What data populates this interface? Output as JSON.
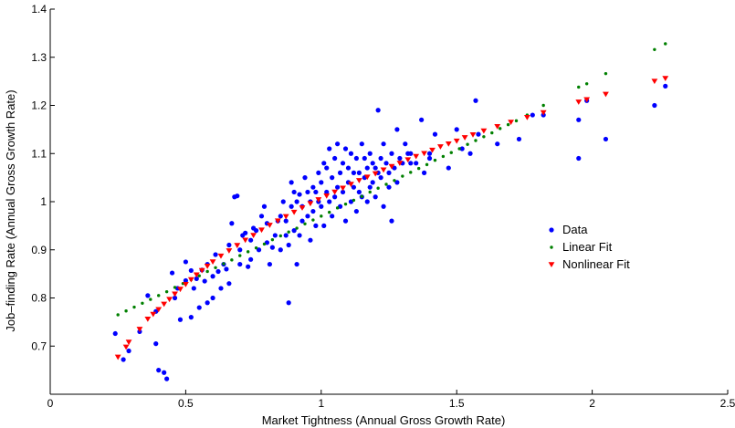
{
  "chart_data": {
    "type": "scatter",
    "title": "",
    "xlabel": "Market Tightness (Annual Gross Growth Rate)",
    "ylabel": "Job–finding Rate (Annual Gross Growth Rate)",
    "xlim": [
      0,
      2.5
    ],
    "ylim": [
      0.6,
      1.4
    ],
    "xticks": [
      0,
      0.5,
      1,
      1.5,
      2,
      2.5
    ],
    "xtick_labels": [
      "0",
      "0.5",
      "1",
      "1.5",
      "2",
      "2.5"
    ],
    "yticks": [
      0.7,
      0.8,
      0.9,
      1.0,
      1.1,
      1.2,
      1.3,
      1.4
    ],
    "ytick_labels": [
      "0.7",
      "0.8",
      "0.9",
      "1",
      "1.1",
      "1.2",
      "1.3",
      "1.4"
    ],
    "grid": false,
    "legend_position": "center-right",
    "series": [
      {
        "name": "Data",
        "color": "#0000ff",
        "marker": "circle",
        "points": [
          [
            0.24,
            0.726
          ],
          [
            0.27,
            0.672
          ],
          [
            0.29,
            0.69
          ],
          [
            0.33,
            0.73
          ],
          [
            0.36,
            0.805
          ],
          [
            0.39,
            0.705
          ],
          [
            0.39,
            0.772
          ],
          [
            0.4,
            0.65
          ],
          [
            0.42,
            0.645
          ],
          [
            0.43,
            0.632
          ],
          [
            0.45,
            0.852
          ],
          [
            0.46,
            0.8
          ],
          [
            0.47,
            0.82
          ],
          [
            0.48,
            0.755
          ],
          [
            0.5,
            0.875
          ],
          [
            0.5,
            0.836
          ],
          [
            0.52,
            0.857
          ],
          [
            0.52,
            0.76
          ],
          [
            0.53,
            0.82
          ],
          [
            0.54,
            0.84
          ],
          [
            0.55,
            0.78
          ],
          [
            0.56,
            0.858
          ],
          [
            0.57,
            0.835
          ],
          [
            0.58,
            0.87
          ],
          [
            0.58,
            0.79
          ],
          [
            0.6,
            0.845
          ],
          [
            0.6,
            0.8
          ],
          [
            0.61,
            0.89
          ],
          [
            0.62,
            0.855
          ],
          [
            0.63,
            0.82
          ],
          [
            0.64,
            0.87
          ],
          [
            0.65,
            0.86
          ],
          [
            0.66,
            0.91
          ],
          [
            0.66,
            0.83
          ],
          [
            0.67,
            0.955
          ],
          [
            0.68,
            1.01
          ],
          [
            0.69,
            1.012
          ],
          [
            0.7,
            0.87
          ],
          [
            0.7,
            0.9
          ],
          [
            0.71,
            0.93
          ],
          [
            0.72,
            0.935
          ],
          [
            0.73,
            0.865
          ],
          [
            0.74,
            0.88
          ],
          [
            0.74,
            0.92
          ],
          [
            0.75,
            0.945
          ],
          [
            0.76,
            0.94
          ],
          [
            0.77,
            0.9
          ],
          [
            0.78,
            0.97
          ],
          [
            0.79,
            0.99
          ],
          [
            0.8,
            0.915
          ],
          [
            0.8,
            0.955
          ],
          [
            0.81,
            0.87
          ],
          [
            0.82,
            0.905
          ],
          [
            0.83,
            0.93
          ],
          [
            0.84,
            0.96
          ],
          [
            0.85,
            0.9
          ],
          [
            0.85,
            0.97
          ],
          [
            0.86,
            1.0
          ],
          [
            0.87,
            0.93
          ],
          [
            0.87,
            0.96
          ],
          [
            0.88,
            0.91
          ],
          [
            0.88,
            0.79
          ],
          [
            0.89,
            1.04
          ],
          [
            0.89,
            0.99
          ],
          [
            0.9,
            1.02
          ],
          [
            0.9,
            0.94
          ],
          [
            0.91,
            1.0
          ],
          [
            0.91,
            0.87
          ],
          [
            0.92,
            0.93
          ],
          [
            0.92,
            1.015
          ],
          [
            0.93,
            0.96
          ],
          [
            0.93,
            0.99
          ],
          [
            0.94,
            1.05
          ],
          [
            0.95,
            0.97
          ],
          [
            0.95,
            1.02
          ],
          [
            0.96,
            1.0
          ],
          [
            0.96,
            0.92
          ],
          [
            0.97,
            1.03
          ],
          [
            0.97,
            0.98
          ],
          [
            0.98,
            1.02
          ],
          [
            0.98,
            0.95
          ],
          [
            0.99,
            1.06
          ],
          [
            0.99,
            1.0
          ],
          [
            1.0,
            0.99
          ],
          [
            1.0,
            1.04
          ],
          [
            1.01,
            1.08
          ],
          [
            1.01,
            0.95
          ],
          [
            1.02,
            1.02
          ],
          [
            1.02,
            1.07
          ],
          [
            1.03,
            1.0
          ],
          [
            1.03,
            1.11
          ],
          [
            1.04,
            1.05
          ],
          [
            1.04,
            0.97
          ],
          [
            1.05,
            1.01
          ],
          [
            1.05,
            1.09
          ],
          [
            1.06,
            1.03
          ],
          [
            1.06,
            1.12
          ],
          [
            1.07,
            0.99
          ],
          [
            1.07,
            1.06
          ],
          [
            1.08,
            1.02
          ],
          [
            1.08,
            1.08
          ],
          [
            1.09,
            1.11
          ],
          [
            1.09,
            0.96
          ],
          [
            1.1,
            1.04
          ],
          [
            1.1,
            1.07
          ],
          [
            1.11,
            1.0
          ],
          [
            1.11,
            1.1
          ],
          [
            1.12,
            1.03
          ],
          [
            1.12,
            1.06
          ],
          [
            1.13,
            0.98
          ],
          [
            1.13,
            1.09
          ],
          [
            1.14,
            1.02
          ],
          [
            1.14,
            1.06
          ],
          [
            1.15,
            1.12
          ],
          [
            1.15,
            1.01
          ],
          [
            1.16,
            1.05
          ],
          [
            1.16,
            1.09
          ],
          [
            1.17,
            1.0
          ],
          [
            1.17,
            1.07
          ],
          [
            1.18,
            1.03
          ],
          [
            1.18,
            1.1
          ],
          [
            1.19,
            1.04
          ],
          [
            1.19,
            1.08
          ],
          [
            1.2,
            1.01
          ],
          [
            1.2,
            1.07
          ],
          [
            1.21,
            1.06
          ],
          [
            1.21,
            1.19
          ],
          [
            1.22,
            1.09
          ],
          [
            1.22,
            1.05
          ],
          [
            1.23,
            0.99
          ],
          [
            1.23,
            1.12
          ],
          [
            1.24,
            1.08
          ],
          [
            1.25,
            1.03
          ],
          [
            1.25,
            1.06
          ],
          [
            1.26,
            0.96
          ],
          [
            1.26,
            1.1
          ],
          [
            1.27,
            1.07
          ],
          [
            1.28,
            1.15
          ],
          [
            1.28,
            1.04
          ],
          [
            1.29,
            1.09
          ],
          [
            1.3,
            1.08
          ],
          [
            1.31,
            1.12
          ],
          [
            1.32,
            1.1
          ],
          [
            1.33,
            1.08
          ],
          [
            1.33,
            1.1
          ],
          [
            1.35,
            1.08
          ],
          [
            1.37,
            1.17
          ],
          [
            1.38,
            1.06
          ],
          [
            1.4,
            1.1
          ],
          [
            1.4,
            1.09
          ],
          [
            1.42,
            1.14
          ],
          [
            1.47,
            1.07
          ],
          [
            1.5,
            1.15
          ],
          [
            1.52,
            1.11
          ],
          [
            1.55,
            1.1
          ],
          [
            1.57,
            1.21
          ],
          [
            1.58,
            1.14
          ],
          [
            1.65,
            1.12
          ],
          [
            1.73,
            1.13
          ],
          [
            1.78,
            1.18
          ],
          [
            1.82,
            1.18
          ],
          [
            1.95,
            1.17
          ],
          [
            1.95,
            1.09
          ],
          [
            1.98,
            1.21
          ],
          [
            2.05,
            1.13
          ],
          [
            2.23,
            1.2
          ],
          [
            2.27,
            1.24
          ]
        ]
      },
      {
        "name": "Linear Fit",
        "color": "#008000",
        "marker": "dot",
        "points": [
          [
            0.25,
            0.765
          ],
          [
            0.28,
            0.773
          ],
          [
            0.31,
            0.781
          ],
          [
            0.34,
            0.789
          ],
          [
            0.37,
            0.797
          ],
          [
            0.4,
            0.805
          ],
          [
            0.43,
            0.813
          ],
          [
            0.46,
            0.822
          ],
          [
            0.49,
            0.83
          ],
          [
            0.52,
            0.838
          ],
          [
            0.55,
            0.846
          ],
          [
            0.58,
            0.855
          ],
          [
            0.61,
            0.863
          ],
          [
            0.64,
            0.871
          ],
          [
            0.67,
            0.879
          ],
          [
            0.7,
            0.888
          ],
          [
            0.73,
            0.896
          ],
          [
            0.76,
            0.904
          ],
          [
            0.79,
            0.912
          ],
          [
            0.82,
            0.921
          ],
          [
            0.85,
            0.929
          ],
          [
            0.88,
            0.937
          ],
          [
            0.91,
            0.945
          ],
          [
            0.94,
            0.954
          ],
          [
            0.97,
            0.962
          ],
          [
            1.0,
            0.97
          ],
          [
            1.03,
            0.978
          ],
          [
            1.06,
            0.987
          ],
          [
            1.09,
            0.995
          ],
          [
            1.12,
            1.003
          ],
          [
            1.15,
            1.011
          ],
          [
            1.18,
            1.02
          ],
          [
            1.21,
            1.028
          ],
          [
            1.24,
            1.036
          ],
          [
            1.27,
            1.044
          ],
          [
            1.3,
            1.053
          ],
          [
            1.33,
            1.061
          ],
          [
            1.36,
            1.069
          ],
          [
            1.39,
            1.077
          ],
          [
            1.42,
            1.086
          ],
          [
            1.45,
            1.094
          ],
          [
            1.48,
            1.102
          ],
          [
            1.51,
            1.11
          ],
          [
            1.54,
            1.119
          ],
          [
            1.57,
            1.127
          ],
          [
            1.6,
            1.135
          ],
          [
            1.63,
            1.143
          ],
          [
            1.66,
            1.152
          ],
          [
            1.69,
            1.16
          ],
          [
            1.72,
            1.168
          ],
          [
            1.76,
            1.18
          ],
          [
            1.82,
            1.2
          ],
          [
            1.95,
            1.238
          ],
          [
            1.98,
            1.245
          ],
          [
            2.05,
            1.266
          ],
          [
            2.23,
            1.316
          ],
          [
            2.27,
            1.328
          ]
        ]
      },
      {
        "name": "Nonlinear Fit",
        "color": "#ff0000",
        "marker": "triangle-down",
        "points": [
          [
            0.25,
            0.677
          ],
          [
            0.28,
            0.698
          ],
          [
            0.29,
            0.708
          ],
          [
            0.33,
            0.735
          ],
          [
            0.36,
            0.756
          ],
          [
            0.38,
            0.766
          ],
          [
            0.4,
            0.776
          ],
          [
            0.42,
            0.787
          ],
          [
            0.44,
            0.797
          ],
          [
            0.46,
            0.808
          ],
          [
            0.48,
            0.818
          ],
          [
            0.5,
            0.828
          ],
          [
            0.52,
            0.838
          ],
          [
            0.54,
            0.848
          ],
          [
            0.56,
            0.857
          ],
          [
            0.58,
            0.866
          ],
          [
            0.6,
            0.875
          ],
          [
            0.63,
            0.887
          ],
          [
            0.66,
            0.898
          ],
          [
            0.69,
            0.909
          ],
          [
            0.72,
            0.92
          ],
          [
            0.75,
            0.93
          ],
          [
            0.78,
            0.941
          ],
          [
            0.81,
            0.951
          ],
          [
            0.84,
            0.96
          ],
          [
            0.87,
            0.969
          ],
          [
            0.9,
            0.978
          ],
          [
            0.93,
            0.987
          ],
          [
            0.96,
            0.996
          ],
          [
            0.99,
            1.004
          ],
          [
            1.02,
            1.012
          ],
          [
            1.05,
            1.02
          ],
          [
            1.08,
            1.028
          ],
          [
            1.11,
            1.036
          ],
          [
            1.14,
            1.044
          ],
          [
            1.17,
            1.051
          ],
          [
            1.2,
            1.058
          ],
          [
            1.23,
            1.066
          ],
          [
            1.26,
            1.073
          ],
          [
            1.29,
            1.08
          ],
          [
            1.32,
            1.087
          ],
          [
            1.35,
            1.094
          ],
          [
            1.38,
            1.1
          ],
          [
            1.41,
            1.107
          ],
          [
            1.44,
            1.114
          ],
          [
            1.47,
            1.12
          ],
          [
            1.5,
            1.126
          ],
          [
            1.53,
            1.133
          ],
          [
            1.56,
            1.139
          ],
          [
            1.6,
            1.147
          ],
          [
            1.65,
            1.156
          ],
          [
            1.7,
            1.165
          ],
          [
            1.76,
            1.175
          ],
          [
            1.82,
            1.185
          ],
          [
            1.95,
            1.207
          ],
          [
            1.98,
            1.212
          ],
          [
            2.05,
            1.223
          ],
          [
            2.23,
            1.25
          ],
          [
            2.27,
            1.256
          ]
        ]
      }
    ]
  }
}
